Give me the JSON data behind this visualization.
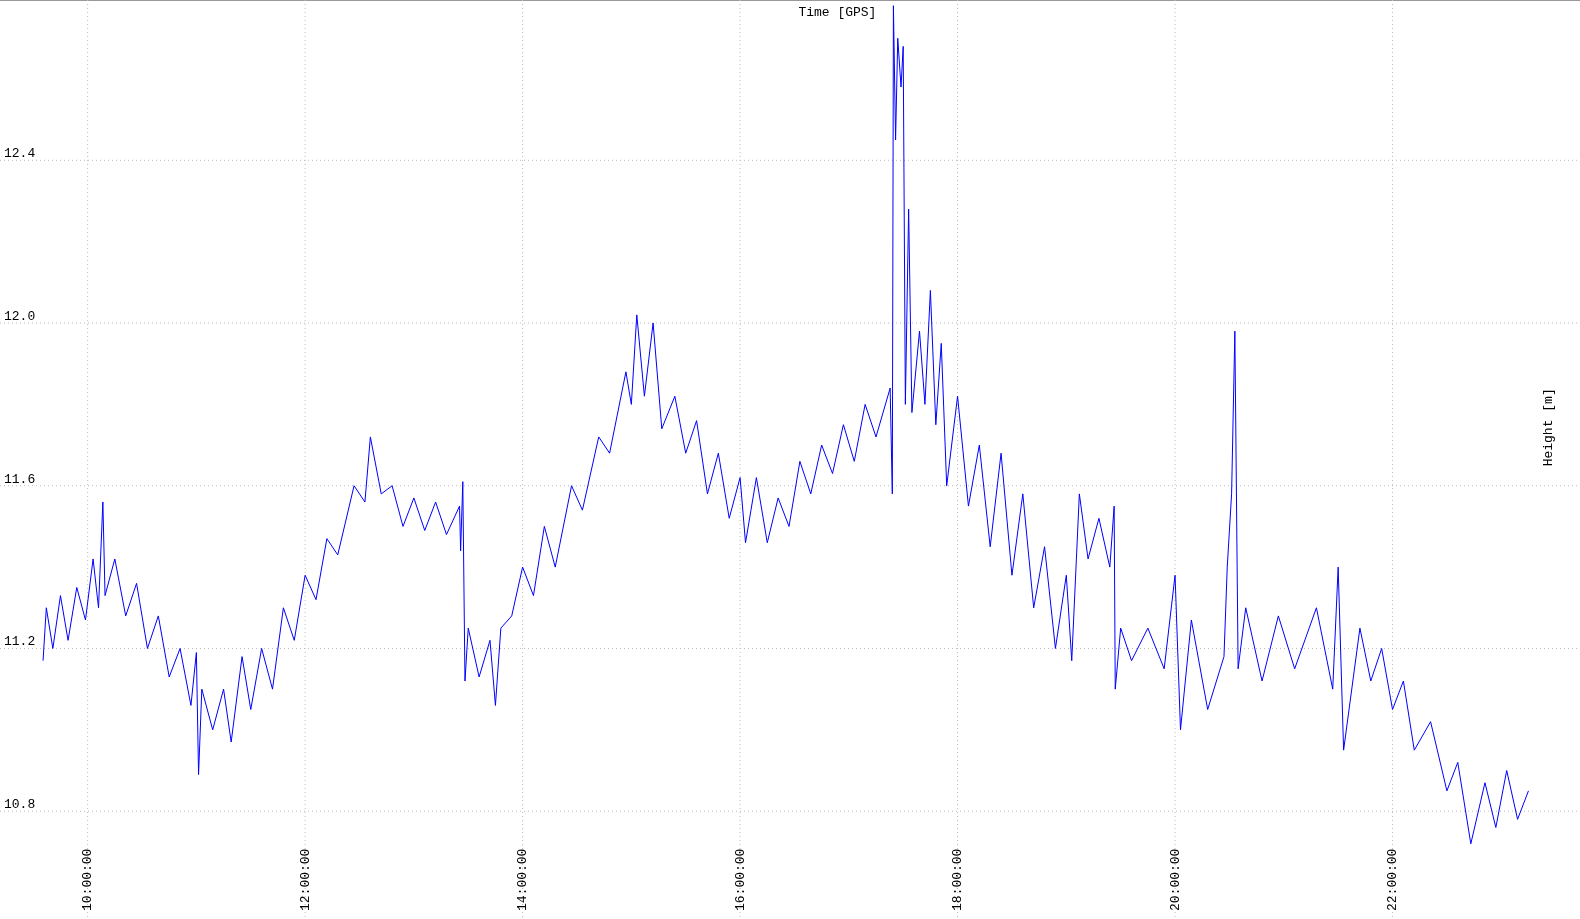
{
  "chart_data": {
    "type": "line",
    "xlabel": "Time [GPS]",
    "ylabel": "Height [m]",
    "xlim": [
      9.194,
      23.724
    ],
    "ylim": [
      10.535,
      12.794
    ],
    "xticks": [
      {
        "value": 10,
        "label": "10:00:00"
      },
      {
        "value": 12,
        "label": "12:00:00"
      },
      {
        "value": 14,
        "label": "14:00:00"
      },
      {
        "value": 16,
        "label": "16:00:00"
      },
      {
        "value": 18,
        "label": "18:00:00"
      },
      {
        "value": 20,
        "label": "20:00:00"
      },
      {
        "value": 22,
        "label": "22:00:00"
      }
    ],
    "yticks": [
      {
        "value": 10.8,
        "label": "10.8"
      },
      {
        "value": 11.2,
        "label": "11.2"
      },
      {
        "value": 11.6,
        "label": "11.6"
      },
      {
        "value": 12.0,
        "label": "12.0"
      },
      {
        "value": 12.4,
        "label": "12.4"
      }
    ],
    "grid": true,
    "marker": "none",
    "line_style": "solid",
    "series": [
      {
        "color": "#0000ff",
        "x": [
          9.59,
          9.62,
          9.68,
          9.75,
          9.82,
          9.9,
          9.98,
          10.05,
          10.1,
          10.14,
          10.16,
          10.25,
          10.35,
          10.45,
          10.55,
          10.65,
          10.75,
          10.85,
          10.95,
          11.0,
          11.02,
          11.05,
          11.15,
          11.25,
          11.32,
          11.42,
          11.5,
          11.6,
          11.7,
          11.8,
          11.9,
          12.0,
          12.1,
          12.2,
          12.3,
          12.45,
          12.55,
          12.6,
          12.7,
          12.8,
          12.9,
          13.0,
          13.1,
          13.2,
          13.3,
          13.42,
          13.43,
          13.45,
          13.47,
          13.5,
          13.6,
          13.7,
          13.75,
          13.8,
          13.9,
          14.0,
          14.1,
          14.2,
          14.3,
          14.45,
          14.55,
          14.7,
          14.8,
          14.95,
          15.0,
          15.05,
          15.12,
          15.2,
          15.28,
          15.4,
          15.5,
          15.6,
          15.7,
          15.8,
          15.9,
          16.0,
          16.05,
          16.15,
          16.25,
          16.35,
          16.45,
          16.55,
          16.65,
          16.75,
          16.85,
          16.95,
          17.05,
          17.15,
          17.25,
          17.38,
          17.4,
          17.41,
          17.43,
          17.45,
          17.48,
          17.5,
          17.52,
          17.55,
          17.58,
          17.65,
          17.7,
          17.75,
          17.8,
          17.85,
          17.9,
          18.0,
          18.1,
          18.2,
          18.3,
          18.4,
          18.5,
          18.6,
          18.7,
          18.8,
          18.9,
          19.0,
          19.05,
          19.12,
          19.2,
          19.3,
          19.4,
          19.44,
          19.45,
          19.5,
          19.6,
          19.75,
          19.9,
          20.0,
          20.05,
          20.15,
          20.3,
          20.45,
          20.48,
          20.52,
          20.55,
          20.58,
          20.65,
          20.8,
          20.95,
          21.1,
          21.3,
          21.45,
          21.5,
          21.55,
          21.7,
          21.8,
          21.9,
          22.0,
          22.1,
          22.2,
          22.35,
          22.5,
          22.6,
          22.72,
          22.85,
          22.95,
          23.05,
          23.15,
          23.25
        ],
        "values": [
          11.17,
          11.3,
          11.2,
          11.33,
          11.22,
          11.35,
          11.27,
          11.42,
          11.3,
          11.56,
          11.33,
          11.42,
          11.28,
          11.36,
          11.2,
          11.28,
          11.13,
          11.2,
          11.06,
          11.19,
          10.89,
          11.1,
          11.0,
          11.1,
          10.97,
          11.18,
          11.05,
          11.2,
          11.1,
          11.3,
          11.22,
          11.38,
          11.32,
          11.47,
          11.43,
          11.6,
          11.56,
          11.72,
          11.58,
          11.6,
          11.5,
          11.57,
          11.49,
          11.56,
          11.48,
          11.55,
          11.44,
          11.61,
          11.12,
          11.25,
          11.13,
          11.22,
          11.06,
          11.25,
          11.28,
          11.4,
          11.33,
          11.5,
          11.4,
          11.6,
          11.54,
          11.72,
          11.68,
          11.88,
          11.8,
          12.02,
          11.82,
          12.0,
          11.74,
          11.82,
          11.68,
          11.76,
          11.58,
          11.68,
          11.52,
          11.62,
          11.46,
          11.62,
          11.46,
          11.57,
          11.5,
          11.66,
          11.58,
          11.7,
          11.63,
          11.75,
          11.66,
          11.8,
          11.72,
          11.84,
          11.58,
          12.78,
          12.45,
          12.7,
          12.58,
          12.68,
          11.8,
          12.28,
          11.78,
          11.98,
          11.8,
          12.08,
          11.75,
          11.95,
          11.6,
          11.82,
          11.55,
          11.7,
          11.45,
          11.68,
          11.38,
          11.58,
          11.3,
          11.45,
          11.2,
          11.38,
          11.17,
          11.58,
          11.42,
          11.52,
          11.4,
          11.55,
          11.1,
          11.25,
          11.17,
          11.25,
          11.15,
          11.38,
          11.0,
          11.27,
          11.05,
          11.18,
          11.4,
          11.58,
          11.98,
          11.15,
          11.3,
          11.12,
          11.28,
          11.15,
          11.3,
          11.1,
          11.4,
          10.95,
          11.25,
          11.12,
          11.2,
          11.05,
          11.12,
          10.95,
          11.02,
          10.85,
          10.92,
          10.72,
          10.87,
          10.76,
          10.9,
          10.78,
          10.85
        ]
      }
    ]
  }
}
